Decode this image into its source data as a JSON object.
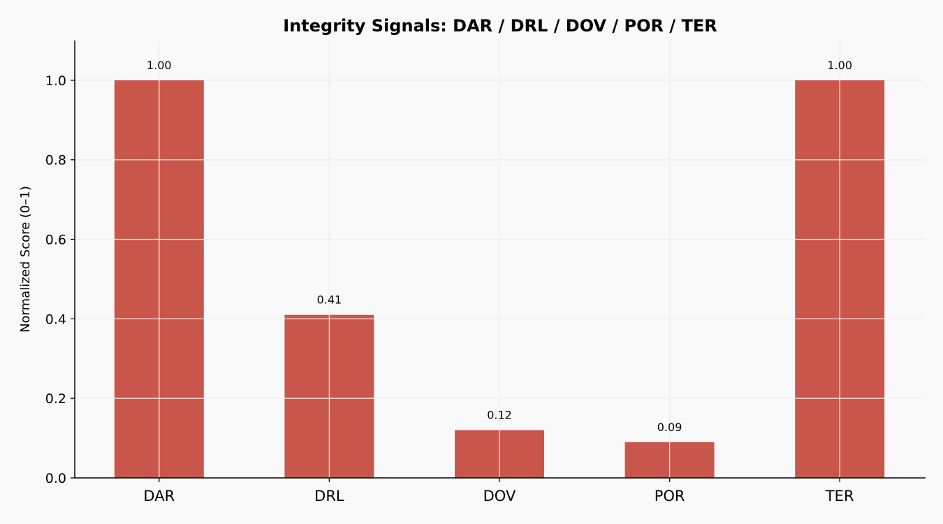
{
  "chart_data": {
    "type": "bar",
    "title": "Integrity Signals: DAR / DRL / DOV / POR / TER",
    "xlabel": "",
    "ylabel": "Normalized Score (0–1)",
    "categories": [
      "DAR",
      "DRL",
      "DOV",
      "POR",
      "TER"
    ],
    "values": [
      1.0,
      0.41,
      0.12,
      0.09,
      1.0
    ],
    "data_labels": [
      "1.00",
      "0.41",
      "0.12",
      "0.09",
      "1.00"
    ],
    "ylim": [
      0,
      1.1
    ],
    "yticks": [
      0.0,
      0.2,
      0.4,
      0.6,
      0.8,
      1.0
    ],
    "ytick_labels": [
      "0.0",
      "0.2",
      "0.4",
      "0.6",
      "0.8",
      "1.0"
    ],
    "grid": true,
    "colors": {
      "bar": "#c9564b",
      "background": "#f9f9f9",
      "grid": "#eeeeee",
      "axis": "#000000"
    }
  }
}
